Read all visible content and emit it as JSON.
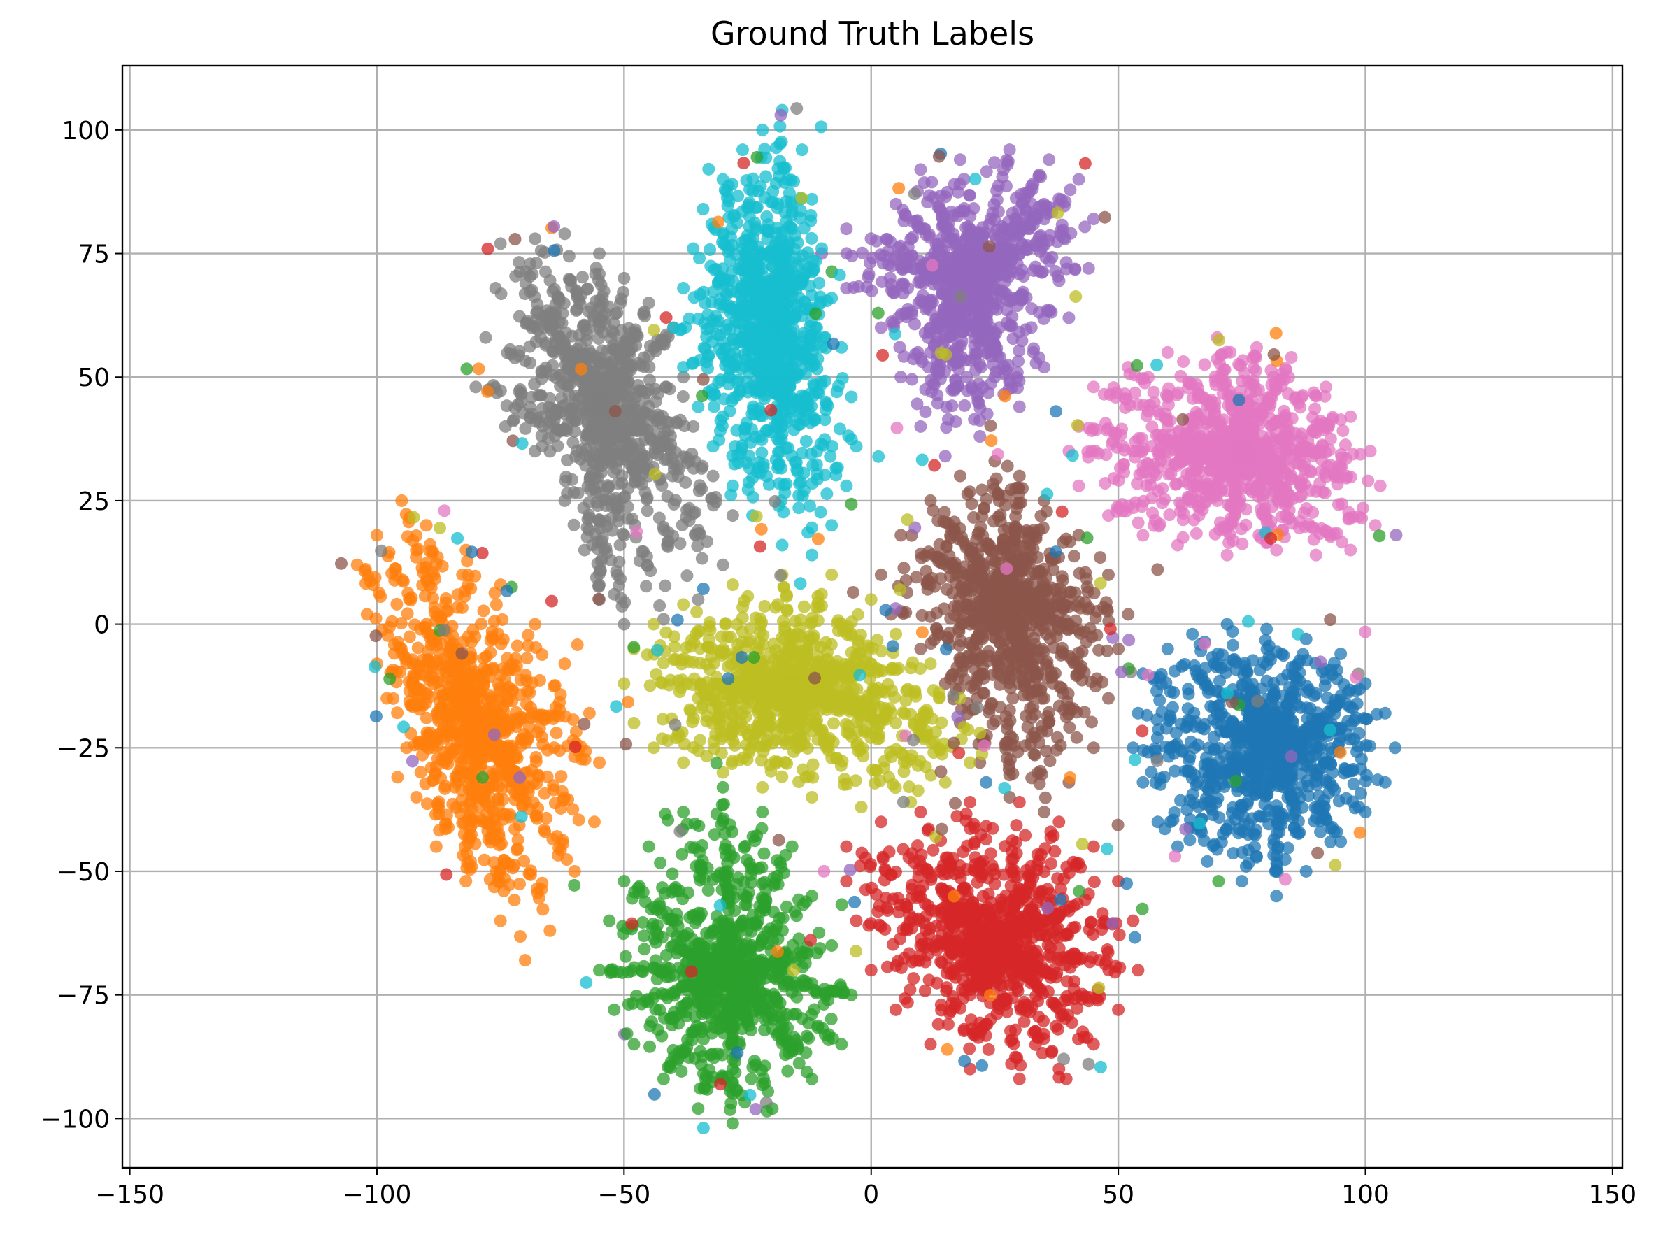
{
  "chart_data": {
    "type": "scatter",
    "title": "Ground Truth Labels",
    "xlabel": "",
    "ylabel": "",
    "xlim": [
      -151.5,
      152
    ],
    "ylim": [
      -110,
      113
    ],
    "xticks": [
      -150,
      -100,
      -50,
      0,
      50,
      100,
      150
    ],
    "yticks": [
      -100,
      -75,
      -50,
      -25,
      0,
      25,
      50,
      75,
      100
    ],
    "xtick_labels": [
      "−150",
      "−100",
      "−50",
      "0",
      "50",
      "100",
      "150"
    ],
    "ytick_labels": [
      "−100",
      "−75",
      "−50",
      "−25",
      "0",
      "25",
      "50",
      "75",
      "100"
    ],
    "grid": true,
    "legend": false,
    "marker_alpha": 0.75,
    "series": [
      {
        "color": "#1f77b4",
        "cluster_center": [
          83,
          -25
        ],
        "cluster_extent": {
          "x": [
            52,
            106
          ],
          "y": [
            -56,
            1
          ]
        },
        "sample_points": [
          [
            55,
            -10
          ],
          [
            60,
            -5
          ],
          [
            65,
            -2
          ],
          [
            72,
            0
          ],
          [
            80,
            -1
          ],
          [
            88,
            -3
          ],
          [
            95,
            -6
          ],
          [
            100,
            -12
          ],
          [
            104,
            -18
          ],
          [
            106,
            -25
          ],
          [
            104,
            -32
          ],
          [
            100,
            -38
          ],
          [
            95,
            -44
          ],
          [
            88,
            -50
          ],
          [
            82,
            -55
          ],
          [
            75,
            -52
          ],
          [
            68,
            -48
          ],
          [
            62,
            -45
          ],
          [
            58,
            -40
          ],
          [
            55,
            -32
          ],
          [
            53,
            -25
          ],
          [
            54,
            -18
          ],
          [
            70,
            -20
          ],
          [
            78,
            -28
          ],
          [
            85,
            -35
          ],
          [
            90,
            -22
          ],
          [
            66,
            -32
          ],
          [
            76,
            -12
          ]
        ]
      },
      {
        "color": "#ff7f0e",
        "cluster_center": [
          -80,
          -20
        ],
        "cluster_extent": {
          "x": [
            -104,
            -55
          ],
          "y": [
            -68,
            26
          ]
        },
        "sample_points": [
          [
            -95,
            25
          ],
          [
            -100,
            18
          ],
          [
            -104,
            12
          ],
          [
            -102,
            2
          ],
          [
            -100,
            -8
          ],
          [
            -98,
            -15
          ],
          [
            -94,
            -25
          ],
          [
            -92,
            -35
          ],
          [
            -88,
            -45
          ],
          [
            -82,
            -52
          ],
          [
            -75,
            -60
          ],
          [
            -70,
            -68
          ],
          [
            -65,
            -62
          ],
          [
            -60,
            -50
          ],
          [
            -56,
            -40
          ],
          [
            -55,
            -28
          ],
          [
            -57,
            -18
          ],
          [
            -62,
            -8
          ],
          [
            -68,
            0
          ],
          [
            -75,
            8
          ],
          [
            -82,
            15
          ],
          [
            -90,
            20
          ],
          [
            -85,
            -5
          ],
          [
            -78,
            -20
          ],
          [
            -72,
            -30
          ],
          [
            -66,
            -42
          ],
          [
            -90,
            0
          ],
          [
            -80,
            -35
          ]
        ]
      },
      {
        "color": "#2ca02c",
        "cluster_center": [
          -28,
          -70
        ],
        "cluster_extent": {
          "x": [
            -55,
            -3
          ],
          "y": [
            -101,
            -33
          ]
        },
        "sample_points": [
          [
            -30,
            -33
          ],
          [
            -38,
            -38
          ],
          [
            -45,
            -45
          ],
          [
            -50,
            -52
          ],
          [
            -53,
            -60
          ],
          [
            -55,
            -70
          ],
          [
            -52,
            -78
          ],
          [
            -48,
            -85
          ],
          [
            -42,
            -92
          ],
          [
            -35,
            -98
          ],
          [
            -28,
            -101
          ],
          [
            -20,
            -98
          ],
          [
            -12,
            -92
          ],
          [
            -6,
            -85
          ],
          [
            -4,
            -75
          ],
          [
            -8,
            -65
          ],
          [
            -12,
            -55
          ],
          [
            -16,
            -45
          ],
          [
            -22,
            -38
          ],
          [
            -30,
            -60
          ],
          [
            -35,
            -75
          ],
          [
            -25,
            -80
          ],
          [
            -18,
            -70
          ],
          [
            -40,
            -65
          ],
          [
            -28,
            -90
          ],
          [
            -15,
            -85
          ]
        ]
      },
      {
        "color": "#d62728",
        "cluster_center": [
          25,
          -65
        ],
        "cluster_extent": {
          "x": [
            -6,
            54
          ],
          "y": [
            -92,
            -35
          ]
        },
        "sample_points": [
          [
            -5,
            -45
          ],
          [
            2,
            -40
          ],
          [
            10,
            -38
          ],
          [
            20,
            -36
          ],
          [
            30,
            -36
          ],
          [
            38,
            -40
          ],
          [
            45,
            -45
          ],
          [
            50,
            -52
          ],
          [
            53,
            -60
          ],
          [
            54,
            -70
          ],
          [
            50,
            -78
          ],
          [
            45,
            -85
          ],
          [
            38,
            -90
          ],
          [
            30,
            -92
          ],
          [
            20,
            -90
          ],
          [
            12,
            -85
          ],
          [
            5,
            -78
          ],
          [
            0,
            -70
          ],
          [
            -3,
            -60
          ],
          [
            -5,
            -52
          ],
          [
            15,
            -55
          ],
          [
            25,
            -65
          ],
          [
            35,
            -70
          ],
          [
            20,
            -75
          ],
          [
            40,
            -58
          ],
          [
            10,
            -65
          ]
        ]
      },
      {
        "color": "#9467bd",
        "cluster_center": [
          20,
          70
        ],
        "cluster_extent": {
          "x": [
            -10,
            45
          ],
          "y": [
            33,
            96
          ]
        },
        "sample_points": [
          [
            5,
            85
          ],
          [
            10,
            92
          ],
          [
            18,
            94
          ],
          [
            28,
            96
          ],
          [
            36,
            94
          ],
          [
            42,
            90
          ],
          [
            45,
            82
          ],
          [
            44,
            72
          ],
          [
            40,
            62
          ],
          [
            35,
            52
          ],
          [
            30,
            44
          ],
          [
            22,
            38
          ],
          [
            15,
            34
          ],
          [
            10,
            40
          ],
          [
            6,
            50
          ],
          [
            2,
            60
          ],
          [
            -5,
            68
          ],
          [
            -10,
            75
          ],
          [
            -5,
            80
          ],
          [
            20,
            80
          ],
          [
            25,
            65
          ],
          [
            30,
            75
          ],
          [
            15,
            70
          ],
          [
            35,
            85
          ],
          [
            12,
            55
          ],
          [
            25,
            50
          ]
        ]
      },
      {
        "color": "#8c564b",
        "cluster_center": [
          28,
          5
        ],
        "cluster_extent": {
          "x": [
            2,
            52
          ],
          "y": [
            -38,
            33
          ]
        },
        "sample_points": [
          [
            25,
            33
          ],
          [
            18,
            30
          ],
          [
            12,
            25
          ],
          [
            6,
            18
          ],
          [
            2,
            10
          ],
          [
            4,
            2
          ],
          [
            10,
            -5
          ],
          [
            15,
            -12
          ],
          [
            18,
            -20
          ],
          [
            22,
            -28
          ],
          [
            28,
            -35
          ],
          [
            35,
            -38
          ],
          [
            40,
            -32
          ],
          [
            45,
            -25
          ],
          [
            48,
            -15
          ],
          [
            50,
            -5
          ],
          [
            52,
            2
          ],
          [
            48,
            10
          ],
          [
            42,
            18
          ],
          [
            35,
            25
          ],
          [
            30,
            30
          ],
          [
            25,
            10
          ],
          [
            30,
            -5
          ],
          [
            35,
            -15
          ],
          [
            20,
            0
          ],
          [
            40,
            0
          ]
        ]
      },
      {
        "color": "#e377c2",
        "cluster_center": [
          75,
          35
        ],
        "cluster_extent": {
          "x": [
            38,
            103
          ],
          "y": [
            11,
            58
          ]
        },
        "sample_points": [
          [
            42,
            40
          ],
          [
            45,
            48
          ],
          [
            52,
            52
          ],
          [
            60,
            55
          ],
          [
            70,
            58
          ],
          [
            78,
            56
          ],
          [
            85,
            54
          ],
          [
            92,
            48
          ],
          [
            97,
            42
          ],
          [
            101,
            35
          ],
          [
            103,
            28
          ],
          [
            102,
            20
          ],
          [
            97,
            15
          ],
          [
            90,
            14
          ],
          [
            82,
            15
          ],
          [
            72,
            14
          ],
          [
            62,
            16
          ],
          [
            55,
            18
          ],
          [
            48,
            22
          ],
          [
            42,
            28
          ],
          [
            40,
            35
          ],
          [
            60,
            40
          ],
          [
            75,
            45
          ],
          [
            85,
            30
          ],
          [
            70,
            25
          ],
          [
            55,
            32
          ]
        ]
      },
      {
        "color": "#7f7f7f",
        "cluster_center": [
          -55,
          45
        ],
        "cluster_extent": {
          "x": [
            -80,
            -28
          ],
          "y": [
            0,
            79
          ]
        },
        "sample_points": [
          [
            -75,
            77
          ],
          [
            -68,
            78
          ],
          [
            -62,
            79
          ],
          [
            -55,
            75
          ],
          [
            -50,
            70
          ],
          [
            -45,
            65
          ],
          [
            -40,
            60
          ],
          [
            -38,
            50
          ],
          [
            -36,
            40
          ],
          [
            -32,
            30
          ],
          [
            -28,
            22
          ],
          [
            -30,
            12
          ],
          [
            -35,
            5
          ],
          [
            -42,
            1
          ],
          [
            -50,
            0
          ],
          [
            -55,
            5
          ],
          [
            -58,
            15
          ],
          [
            -62,
            25
          ],
          [
            -68,
            35
          ],
          [
            -74,
            40
          ],
          [
            -80,
            48
          ],
          [
            -78,
            58
          ],
          [
            -76,
            68
          ],
          [
            -60,
            55
          ],
          [
            -55,
            40
          ],
          [
            -45,
            30
          ],
          [
            -65,
            60
          ],
          [
            -50,
            18
          ]
        ]
      },
      {
        "color": "#bcbd22",
        "cluster_center": [
          -15,
          -12
        ],
        "cluster_extent": {
          "x": [
            -50,
            22
          ],
          "y": [
            -38,
            12
          ]
        },
        "sample_points": [
          [
            -48,
            -5
          ],
          [
            -50,
            -12
          ],
          [
            -48,
            -20
          ],
          [
            -44,
            -25
          ],
          [
            -38,
            -28
          ],
          [
            -30,
            -30
          ],
          [
            -22,
            -33
          ],
          [
            -12,
            -35
          ],
          [
            -2,
            -37
          ],
          [
            8,
            -36
          ],
          [
            15,
            -32
          ],
          [
            20,
            -28
          ],
          [
            22,
            -22
          ],
          [
            18,
            -15
          ],
          [
            12,
            -8
          ],
          [
            5,
            -2
          ],
          [
            0,
            5
          ],
          [
            -8,
            10
          ],
          [
            -18,
            10
          ],
          [
            -28,
            8
          ],
          [
            -38,
            4
          ],
          [
            -44,
            0
          ],
          [
            -25,
            -10
          ],
          [
            -10,
            -15
          ],
          [
            5,
            -20
          ],
          [
            -35,
            -15
          ],
          [
            -15,
            -25
          ],
          [
            0,
            -8
          ]
        ]
      },
      {
        "color": "#17becf",
        "cluster_center": [
          -20,
          60
        ],
        "cluster_extent": {
          "x": [
            -40,
            -3
          ],
          "y": [
            14,
            104
          ]
        },
        "sample_points": [
          [
            -18,
            104
          ],
          [
            -22,
            100
          ],
          [
            -26,
            96
          ],
          [
            -30,
            90
          ],
          [
            -34,
            84
          ],
          [
            -36,
            76
          ],
          [
            -38,
            68
          ],
          [
            -40,
            60
          ],
          [
            -38,
            52
          ],
          [
            -35,
            44
          ],
          [
            -32,
            36
          ],
          [
            -28,
            28
          ],
          [
            -24,
            22
          ],
          [
            -18,
            16
          ],
          [
            -12,
            14
          ],
          [
            -8,
            20
          ],
          [
            -5,
            28
          ],
          [
            -3,
            36
          ],
          [
            -4,
            46
          ],
          [
            -6,
            56
          ],
          [
            -8,
            66
          ],
          [
            -10,
            76
          ],
          [
            -12,
            86
          ],
          [
            -14,
            96
          ],
          [
            -22,
            60
          ],
          [
            -18,
            40
          ],
          [
            -26,
            76
          ],
          [
            -16,
            80
          ]
        ]
      }
    ]
  }
}
